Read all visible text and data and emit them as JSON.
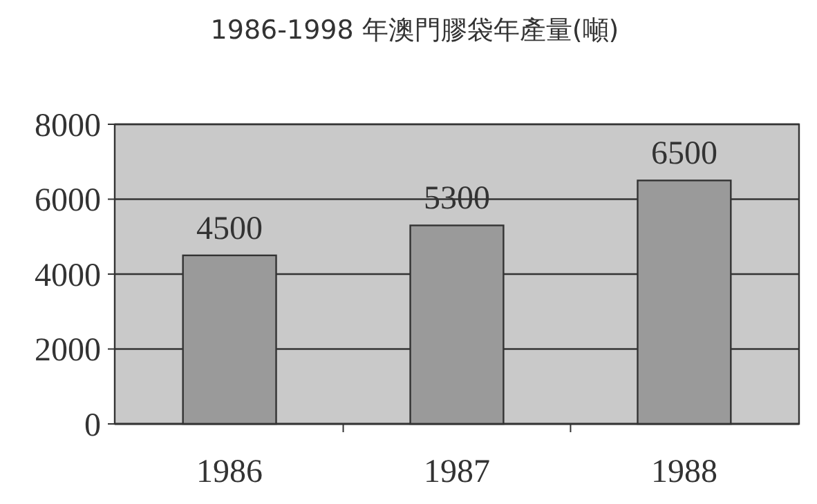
{
  "chart_data": {
    "type": "bar",
    "title": "1986-1998 年澳門膠袋年產量(噸)",
    "categories": [
      "1986",
      "1987",
      "1988"
    ],
    "values": [
      4500,
      5300,
      6500
    ],
    "color": "#9a9a9a",
    "ylim": [
      0,
      8000
    ],
    "yticks": [
      0,
      2000,
      4000,
      6000,
      8000
    ],
    "grid": "y",
    "data_labels": true
  }
}
